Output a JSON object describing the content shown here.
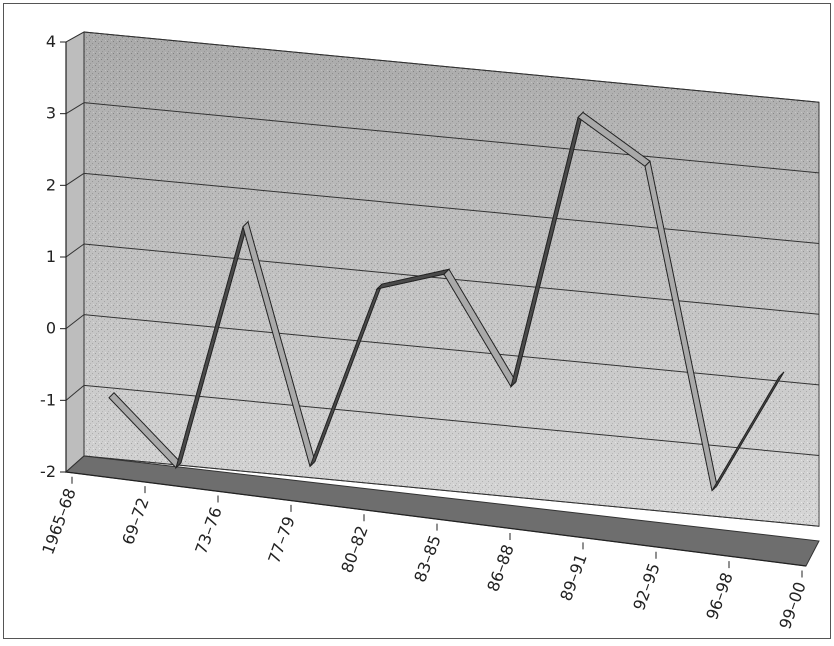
{
  "chart_data": {
    "type": "line",
    "title": "",
    "xlabel": "",
    "ylabel": "",
    "categories": [
      "1965–68",
      "69–72",
      "73–76",
      "77–79",
      "80–82",
      "83–85",
      "86–88",
      "89–91",
      "92–95",
      "96–98",
      "99–00"
    ],
    "values": [
      -1.0,
      -1.9,
      1.6,
      -1.7,
      0.9,
      1.2,
      -0.3,
      3.6,
      3.0,
      -1.5,
      0.2
    ],
    "yticks": [
      "4",
      "3",
      "2",
      "1",
      "0",
      "-1",
      "-2"
    ],
    "ylim": [
      -2,
      4
    ],
    "grid": true,
    "legend": "none",
    "style": "3d-ribbon",
    "colors": {
      "ribbon_top": "#a9a9a9",
      "ribbon_side": "#4a4a4a",
      "floor": "#6e6e6e",
      "wall": "#cfcfcf",
      "gridline": "#333333"
    }
  }
}
